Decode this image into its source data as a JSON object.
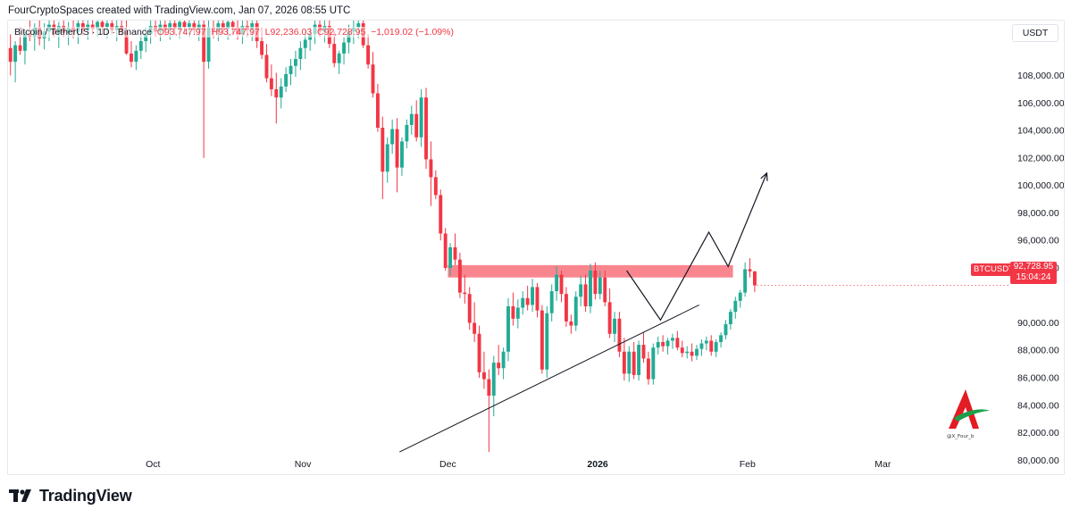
{
  "header": {
    "text": "FourCryptoSpaces created with TradingView.com, Jan 07, 2026 08:55 UTC"
  },
  "legend": {
    "symbol": "Bitcoin / TetherUS · 1D · Binance",
    "open": "O93,747.97",
    "high": "H93,747.97",
    "low": "L92,236.03",
    "close": "C92,728.95",
    "change": "−1,019.02 (−1.09%)"
  },
  "currency_label": "USDT",
  "price_tag": {
    "price": "92,728.95",
    "countdown": "15:04:24",
    "ticker": "BTCUSDT"
  },
  "footer": {
    "brand": "TradingView"
  },
  "watermark_text": "@X_Four_b",
  "colors": {
    "up": "#22ab94",
    "down": "#f23645",
    "zone": "#f7525f",
    "line": "#131722"
  },
  "chart_data": {
    "type": "candlestick",
    "y_ticks": [
      "108,000.00",
      "106,000.00",
      "104,000.00",
      "102,000.00",
      "100,000.00",
      "98,000.00",
      "96,000.00",
      "94,000.00",
      "90,000.00",
      "88,000.00",
      "86,000.00",
      "84,000.00",
      "82,000.00",
      "80,000.00"
    ],
    "y_tick_values": [
      108000,
      106000,
      104000,
      102000,
      100000,
      98000,
      96000,
      94000,
      90000,
      88000,
      86000,
      84000,
      82000,
      80000
    ],
    "x_ticks": [
      {
        "label": "Oct",
        "date": "2025-10-01",
        "bold": false
      },
      {
        "label": "Nov",
        "date": "2025-11-01",
        "bold": false
      },
      {
        "label": "Dec",
        "date": "2025-12-01",
        "bold": false
      },
      {
        "label": "2026",
        "date": "2026-01-01",
        "bold": true
      },
      {
        "label": "Feb",
        "date": "2026-02-01",
        "bold": false
      },
      {
        "label": "Mar",
        "date": "2026-03-01",
        "bold": false
      }
    ],
    "x_range": [
      "2025-09-01",
      "2026-03-27"
    ],
    "y_range": [
      79500,
      112000
    ],
    "candles_start": "2025-09-01",
    "candles": [
      [
        110000,
        111000,
        108000,
        109000
      ],
      [
        109000,
        110500,
        107500,
        110200
      ],
      [
        110200,
        111500,
        109500,
        109800
      ],
      [
        109800,
        111200,
        108800,
        111000
      ],
      [
        111000,
        112000,
        110500,
        110800
      ],
      [
        110800,
        111800,
        109800,
        111500
      ],
      [
        111500,
        112000,
        110200,
        110700
      ],
      [
        110700,
        111800,
        109900,
        111200
      ],
      [
        111200,
        112000,
        110500,
        111700
      ],
      [
        111700,
        112000,
        110800,
        111000
      ],
      [
        111000,
        111900,
        110000,
        111600
      ],
      [
        111600,
        112000,
        110800,
        111100
      ],
      [
        111100,
        111900,
        110200,
        111500
      ],
      [
        111500,
        112000,
        110700,
        111200
      ],
      [
        111200,
        112000,
        110300,
        111800
      ],
      [
        111800,
        112000,
        110900,
        111300
      ],
      [
        111300,
        112000,
        110600,
        111700
      ],
      [
        111700,
        112000,
        111000,
        111400
      ],
      [
        111400,
        112000,
        110800,
        111900
      ],
      [
        111900,
        112000,
        111000,
        111500
      ],
      [
        111500,
        112000,
        110700,
        111800
      ],
      [
        111800,
        112000,
        111000,
        111300
      ],
      [
        111300,
        112000,
        110500,
        111600
      ],
      [
        111600,
        112000,
        110900,
        111200
      ],
      [
        111200,
        112000,
        109500,
        109600
      ],
      [
        109600,
        110500,
        108600,
        109000
      ],
      [
        109000,
        110200,
        108400,
        109800
      ],
      [
        109800,
        111000,
        109200,
        110500
      ],
      [
        110500,
        111500,
        109700,
        111000
      ],
      [
        111000,
        112000,
        110300,
        111600
      ],
      [
        111600,
        112000,
        110800,
        111200
      ],
      [
        111200,
        112000,
        110500,
        111700
      ],
      [
        111700,
        112000,
        110900,
        111300
      ],
      [
        111300,
        112000,
        110600,
        111800
      ],
      [
        111800,
        112000,
        111000,
        111400
      ],
      [
        111400,
        112000,
        110700,
        111900
      ],
      [
        111900,
        112000,
        111000,
        111500
      ],
      [
        111500,
        112000,
        110800,
        111800
      ],
      [
        111800,
        112000,
        111000,
        111300
      ],
      [
        111300,
        112000,
        110500,
        111700
      ],
      [
        111700,
        112000,
        102000,
        109000
      ],
      [
        109000,
        112000,
        108500,
        111500
      ],
      [
        111500,
        112000,
        110700,
        111200
      ],
      [
        111200,
        112000,
        110500,
        111800
      ],
      [
        111800,
        112000,
        111000,
        111400
      ],
      [
        111400,
        112000,
        110600,
        111900
      ],
      [
        111900,
        112000,
        111000,
        111500
      ],
      [
        111500,
        112000,
        110600,
        111000
      ],
      [
        111000,
        112000,
        110300,
        111600
      ],
      [
        111600,
        112000,
        110800,
        111300
      ],
      [
        111300,
        112000,
        110500,
        111800
      ],
      [
        111800,
        112000,
        110000,
        110500
      ],
      [
        110500,
        111500,
        109200,
        109500
      ],
      [
        109500,
        110300,
        107500,
        107800
      ],
      [
        107800,
        108800,
        106500,
        107000
      ],
      [
        107000,
        108200,
        104500,
        106400
      ],
      [
        106400,
        107800,
        105600,
        107200
      ],
      [
        107200,
        108600,
        106800,
        108100
      ],
      [
        108100,
        109200,
        107300,
        108700
      ],
      [
        108700,
        109800,
        107900,
        109200
      ],
      [
        109200,
        110500,
        108400,
        110000
      ],
      [
        110000,
        111300,
        109200,
        110600
      ],
      [
        110600,
        111500,
        109800,
        111000
      ],
      [
        111000,
        112000,
        110300,
        111700
      ],
      [
        111700,
        112000,
        110800,
        111200
      ],
      [
        111200,
        112000,
        110400,
        111600
      ],
      [
        111600,
        112000,
        110000,
        110300
      ],
      [
        110300,
        111200,
        108600,
        108900
      ],
      [
        108900,
        109800,
        108100,
        109600
      ],
      [
        109600,
        110800,
        108800,
        110400
      ],
      [
        110400,
        111700,
        109600,
        111200
      ],
      [
        111200,
        112000,
        110300,
        111500
      ],
      [
        111500,
        112000,
        110700,
        111800
      ],
      [
        111800,
        112000,
        110000,
        110200
      ],
      [
        110200,
        111000,
        108500,
        108800
      ],
      [
        108800,
        109700,
        106400,
        106700
      ],
      [
        106700,
        107400,
        103900,
        104200
      ],
      [
        104200,
        105000,
        99000,
        101000
      ],
      [
        101000,
        103500,
        100200,
        103000
      ],
      [
        103000,
        104800,
        102300,
        104100
      ],
      [
        104100,
        104900,
        99500,
        101300
      ],
      [
        101300,
        103500,
        100700,
        103200
      ],
      [
        103200,
        104800,
        102700,
        104400
      ],
      [
        104400,
        105800,
        103700,
        105200
      ],
      [
        105200,
        106200,
        103200,
        103500
      ],
      [
        103500,
        107000,
        102800,
        106400
      ],
      [
        106400,
        107100,
        101200,
        101900
      ],
      [
        101900,
        103200,
        98500,
        100600
      ],
      [
        100600,
        101100,
        99000,
        99300
      ],
      [
        99300,
        99700,
        96000,
        96500
      ],
      [
        96500,
        96900,
        93800,
        94000
      ],
      [
        94000,
        95800,
        93400,
        95500
      ],
      [
        95500,
        96500,
        94200,
        94600
      ],
      [
        94600,
        95100,
        91800,
        92200
      ],
      [
        92200,
        93500,
        91400,
        92100
      ],
      [
        92100,
        92600,
        89500,
        90000
      ],
      [
        90000,
        91500,
        88600,
        89200
      ],
      [
        89200,
        89800,
        86000,
        86400
      ],
      [
        86400,
        87900,
        85200,
        85900
      ],
      [
        85900,
        86600,
        80600,
        84700
      ],
      [
        84700,
        87600,
        83200,
        87100
      ],
      [
        87100,
        88400,
        86200,
        86700
      ],
      [
        86700,
        88200,
        85900,
        87900
      ],
      [
        87900,
        91800,
        87200,
        91200
      ],
      [
        91200,
        92200,
        89800,
        90300
      ],
      [
        90300,
        91700,
        89600,
        91100
      ],
      [
        91100,
        92300,
        90600,
        91800
      ],
      [
        91800,
        92700,
        90900,
        91300
      ],
      [
        91300,
        93200,
        90800,
        92600
      ],
      [
        92600,
        92900,
        90400,
        90900
      ],
      [
        90900,
        91300,
        86300,
        86600
      ],
      [
        86600,
        91200,
        86000,
        90700
      ],
      [
        90700,
        92800,
        90100,
        92300
      ],
      [
        92300,
        94100,
        91600,
        93500
      ],
      [
        93500,
        93800,
        91500,
        92100
      ],
      [
        92100,
        92600,
        89700,
        90100
      ],
      [
        90100,
        90600,
        89200,
        89800
      ],
      [
        89800,
        92300,
        89400,
        91900
      ],
      [
        91900,
        93400,
        91200,
        92800
      ],
      [
        92800,
        93500,
        90800,
        91200
      ],
      [
        91200,
        94300,
        90700,
        93800
      ],
      [
        93800,
        94400,
        91700,
        92100
      ],
      [
        92100,
        93800,
        91700,
        93300
      ],
      [
        93300,
        93800,
        91200,
        91500
      ],
      [
        91500,
        92500,
        88900,
        89200
      ],
      [
        89200,
        90800,
        88600,
        90300
      ],
      [
        90300,
        90800,
        87500,
        87900
      ],
      [
        87900,
        88900,
        85800,
        86300
      ],
      [
        86300,
        88300,
        85700,
        87900
      ],
      [
        87900,
        88600,
        85900,
        86200
      ],
      [
        86200,
        88700,
        85800,
        88400
      ],
      [
        88400,
        89300,
        87100,
        87400
      ],
      [
        87400,
        87900,
        85500,
        85900
      ],
      [
        85900,
        88500,
        85500,
        88200
      ],
      [
        88200,
        89000,
        87700,
        88600
      ],
      [
        88600,
        89100,
        87900,
        88300
      ],
      [
        88300,
        88900,
        87700,
        88700
      ],
      [
        88700,
        89200,
        88100,
        88900
      ],
      [
        88900,
        89400,
        88000,
        88200
      ],
      [
        88200,
        88700,
        87500,
        87800
      ],
      [
        87800,
        88300,
        87400,
        87900
      ],
      [
        87900,
        88500,
        87200,
        87600
      ],
      [
        87600,
        88400,
        87300,
        88100
      ],
      [
        88100,
        88800,
        87600,
        88500
      ],
      [
        88500,
        89000,
        88000,
        88700
      ],
      [
        88700,
        89100,
        87600,
        87900
      ],
      [
        87900,
        88800,
        87500,
        88600
      ],
      [
        88600,
        89300,
        88200,
        89100
      ],
      [
        89100,
        90200,
        88800,
        89900
      ],
      [
        89900,
        91000,
        89500,
        90800
      ],
      [
        90800,
        91900,
        90300,
        91600
      ],
      [
        91600,
        92400,
        91100,
        92200
      ],
      [
        92200,
        94400,
        91900,
        93900
      ],
      [
        93900,
        94700,
        93300,
        93750
      ],
      [
        93750,
        93750,
        92236,
        92729
      ]
    ],
    "resistance_zone": {
      "x_start": "2025-12-01",
      "x_end": "2026-01-29",
      "y_low": 93300,
      "y_high": 94200
    },
    "trendline": {
      "x_start": "2025-11-21",
      "y_start": 80600,
      "x_end": "2026-01-22",
      "y_end": 91300
    },
    "projection": [
      {
        "date": "2026-01-07",
        "price": 93800
      },
      {
        "date": "2026-01-14",
        "price": 90200
      },
      {
        "date": "2026-01-24",
        "price": 96600
      },
      {
        "date": "2026-01-28",
        "price": 94100
      },
      {
        "date": "2026-02-05",
        "price": 100900
      }
    ],
    "current_price": 92728.95
  }
}
